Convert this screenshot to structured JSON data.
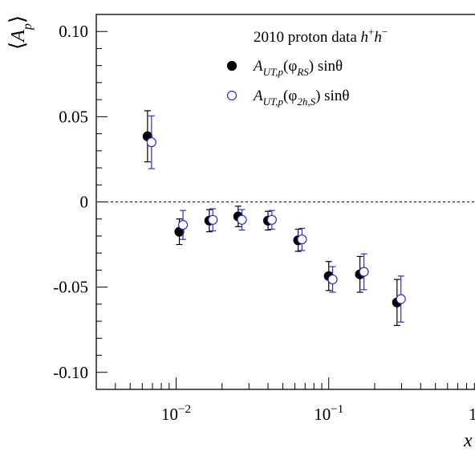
{
  "chart_data": {
    "type": "scatter",
    "title": "",
    "xlabel": "x",
    "ylabel": "⟨A_p⟩",
    "xscale": "log",
    "xlim": [
      0.003,
      1.0
    ],
    "ylim": [
      -0.11,
      0.11
    ],
    "grid": false,
    "reference_line_y": 0,
    "legend_position": "top-right",
    "legend_header": "2010 proton data h⁺h⁻",
    "y_ticks": [
      {
        "value": 0.1,
        "label": "0.10"
      },
      {
        "value": 0.05,
        "label": "0.05"
      },
      {
        "value": 0,
        "label": "0"
      },
      {
        "value": -0.05,
        "label": "-0.05"
      },
      {
        "value": -0.1,
        "label": "-0.10"
      }
    ],
    "x_ticks": [
      {
        "value": 0.01,
        "base": "10",
        "exp": "−2"
      },
      {
        "value": 0.1,
        "base": "10",
        "exp": "−1"
      },
      {
        "value": 1,
        "base": "1",
        "exp": ""
      }
    ],
    "series": [
      {
        "name": "A_UT,p(φ_RS) sinθ",
        "marker": "filled-circle",
        "color": "#000000",
        "x": [
          0.0065,
          0.0105,
          0.0165,
          0.0255,
          0.04,
          0.063,
          0.1,
          0.16,
          0.28
        ],
        "y": [
          0.0385,
          -0.0175,
          -0.011,
          -0.0085,
          -0.011,
          -0.0225,
          -0.0435,
          -0.0425,
          -0.059
        ],
        "yerr": [
          0.015,
          0.0075,
          0.0065,
          0.006,
          0.0055,
          0.0065,
          0.0085,
          0.0105,
          0.0135
        ]
      },
      {
        "name": "A_UT,p(φ_2h,S) sinθ",
        "marker": "open-circle",
        "color": "#3030c0",
        "x": [
          0.0069,
          0.0111,
          0.0174,
          0.027,
          0.0424,
          0.0668,
          0.106,
          0.17,
          0.297
        ],
        "y": [
          0.035,
          -0.0135,
          -0.0105,
          -0.0105,
          -0.0105,
          -0.022,
          -0.0455,
          -0.041,
          -0.057
        ],
        "yerr": [
          0.0155,
          0.0085,
          0.0065,
          0.006,
          0.0055,
          0.0065,
          0.0075,
          0.0105,
          0.0135
        ]
      }
    ],
    "legend_entries": [
      {
        "base": "A",
        "sub": "UT,p",
        "arg": "(φ",
        "argsub": "RS",
        "tail": ") sinθ"
      },
      {
        "base": "A",
        "sub": "UT,p",
        "arg": "(φ",
        "argsub": "2h,S",
        "tail": ") sinθ"
      }
    ]
  }
}
